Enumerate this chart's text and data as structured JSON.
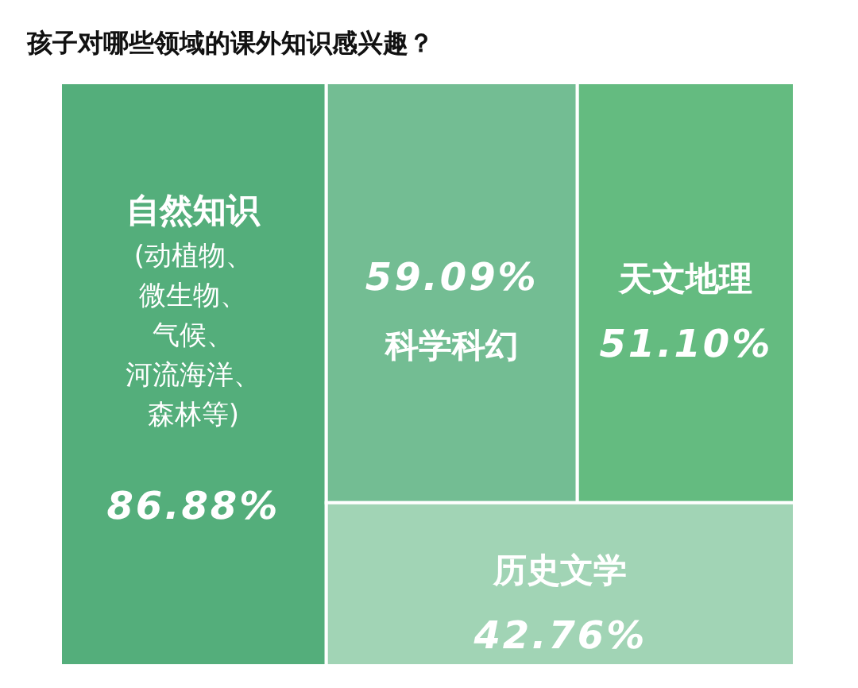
{
  "chart_data": {
    "type": "other",
    "title": "孩子对哪些领域的课外知识感兴趣？",
    "categories": [
      "自然知识",
      "科学科幻",
      "天文地理",
      "历史文学"
    ],
    "values": [
      86.88,
      59.09,
      51.1,
      42.76
    ],
    "value_labels": [
      "86.88%",
      "59.09%",
      "51.10%",
      "42.76%"
    ],
    "colors": [
      "#54ae7b",
      "#73bd93",
      "#64bb80",
      "#a1d4b5"
    ],
    "annotations": [
      "(动植物、微生物、气候、河流海洋、森林等)"
    ]
  }
}
